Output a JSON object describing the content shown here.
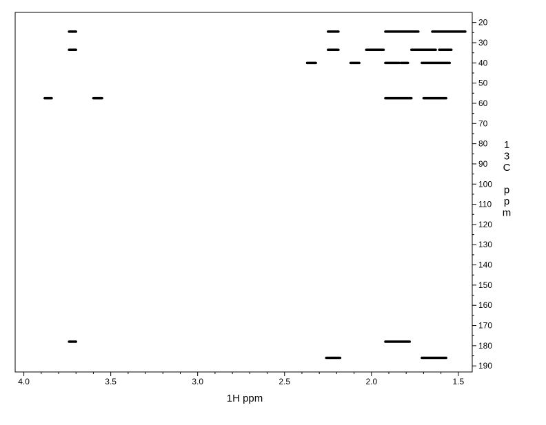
{
  "chart_data": {
    "type": "scatter",
    "title": "",
    "xlabel": "1H ppm",
    "ylabel": "13C ppm",
    "xlim": [
      4.05,
      1.42
    ],
    "ylim": [
      15,
      193
    ],
    "x_reversed": true,
    "x_ticks": [
      {
        "value": 4.0,
        "label": "4.0"
      },
      {
        "value": 3.5,
        "label": "3.5"
      },
      {
        "value": 3.0,
        "label": "3.0"
      },
      {
        "value": 2.5,
        "label": "2.5"
      },
      {
        "value": 2.0,
        "label": "2.0"
      },
      {
        "value": 1.5,
        "label": "1.5"
      }
    ],
    "y_ticks": [
      {
        "value": 20,
        "label": "20"
      },
      {
        "value": 30,
        "label": "30"
      },
      {
        "value": 40,
        "label": "40"
      },
      {
        "value": 50,
        "label": "50"
      },
      {
        "value": 60,
        "label": "60"
      },
      {
        "value": 70,
        "label": "70"
      },
      {
        "value": 80,
        "label": "80"
      },
      {
        "value": 90,
        "label": "90"
      },
      {
        "value": 100,
        "label": "100"
      },
      {
        "value": 110,
        "label": "110"
      },
      {
        "value": 120,
        "label": "120"
      },
      {
        "value": 130,
        "label": "130"
      },
      {
        "value": 140,
        "label": "140"
      },
      {
        "value": 150,
        "label": "150"
      },
      {
        "value": 160,
        "label": "160"
      },
      {
        "value": 170,
        "label": "170"
      },
      {
        "value": 180,
        "label": "180"
      },
      {
        "value": 190,
        "label": "190"
      }
    ],
    "grid": false,
    "legend": "none",
    "color": "#000000",
    "peaks": [
      {
        "x1": 3.74,
        "x2": 3.7,
        "y": 24.5
      },
      {
        "x1": 3.74,
        "x2": 3.7,
        "y": 33.5
      },
      {
        "x1": 3.74,
        "x2": 3.7,
        "y": 178
      },
      {
        "x1": 3.88,
        "x2": 3.84,
        "y": 57.5
      },
      {
        "x1": 3.6,
        "x2": 3.55,
        "y": 57.5
      },
      {
        "x1": 2.25,
        "x2": 2.19,
        "y": 24.5
      },
      {
        "x1": 2.25,
        "x2": 2.19,
        "y": 33.5
      },
      {
        "x1": 2.26,
        "x2": 2.18,
        "y": 186
      },
      {
        "x1": 2.37,
        "x2": 2.32,
        "y": 40
      },
      {
        "x1": 2.12,
        "x2": 2.07,
        "y": 40
      },
      {
        "x1": 1.92,
        "x2": 1.73,
        "y": 24.5
      },
      {
        "x1": 1.65,
        "x2": 1.46,
        "y": 24.5
      },
      {
        "x1": 2.03,
        "x2": 1.93,
        "y": 33.5
      },
      {
        "x1": 1.77,
        "x2": 1.63,
        "y": 33.5
      },
      {
        "x1": 1.61,
        "x2": 1.54,
        "y": 33.5
      },
      {
        "x1": 1.92,
        "x2": 1.84,
        "y": 40
      },
      {
        "x1": 1.83,
        "x2": 1.79,
        "y": 40
      },
      {
        "x1": 1.71,
        "x2": 1.55,
        "y": 40
      },
      {
        "x1": 1.92,
        "x2": 1.77,
        "y": 57.5
      },
      {
        "x1": 1.7,
        "x2": 1.57,
        "y": 57.5
      },
      {
        "x1": 1.92,
        "x2": 1.78,
        "y": 178
      },
      {
        "x1": 1.71,
        "x2": 1.57,
        "y": 186
      }
    ]
  }
}
